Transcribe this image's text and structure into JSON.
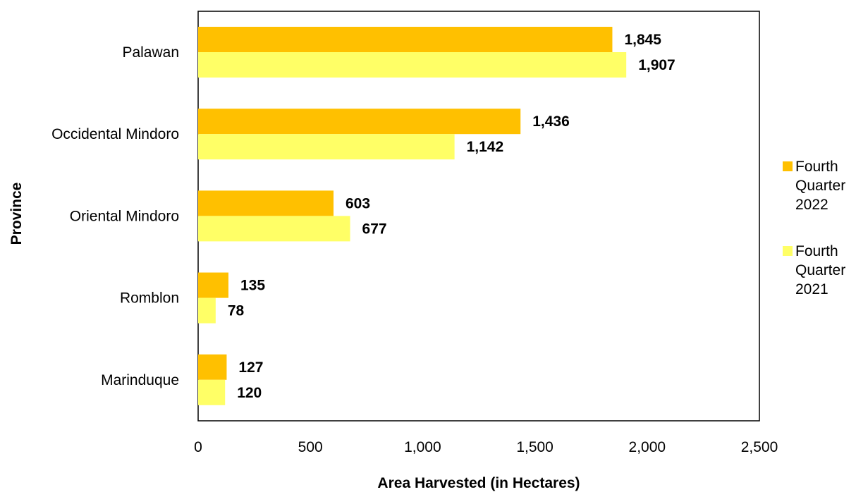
{
  "chart_data": {
    "type": "bar",
    "orientation": "horizontal",
    "categories": [
      "Palawan",
      "Occidental Mindoro",
      "Oriental Mindoro",
      "Romblon",
      "Marinduque"
    ],
    "series": [
      {
        "name": "Fourth Quarter 2022",
        "legend_lines": [
          "Fourth",
          "Quarter",
          "2022"
        ],
        "color": "#FFC000",
        "values": [
          1845,
          1436,
          603,
          135,
          127
        ],
        "labels": [
          "1,845",
          "1,436",
          "603",
          "135",
          "127"
        ]
      },
      {
        "name": "Fourth Quarter 2021",
        "legend_lines": [
          "Fourth",
          "Quarter",
          "2021"
        ],
        "color": "#FFFF66",
        "values": [
          1907,
          1142,
          677,
          78,
          120
        ],
        "labels": [
          "1,907",
          "1,142",
          "677",
          "78",
          "120"
        ]
      }
    ],
    "xlabel": "Area Harvested (in Hectares)",
    "ylabel": "Province",
    "xlim": [
      0,
      2500
    ],
    "x_ticks": [
      0,
      500,
      1000,
      1500,
      2000,
      2500
    ],
    "x_tick_labels": [
      "0",
      "500",
      "1,000",
      "1,500",
      "2,000",
      "2,500"
    ],
    "grid": false,
    "legend_position": "right"
  }
}
